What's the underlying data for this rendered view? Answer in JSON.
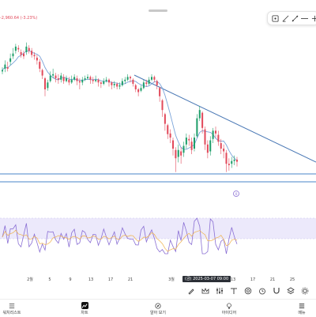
{
  "top_label": "-2,960.64 (-3.23%)",
  "chart_data": {
    "type": "candlestick",
    "y_axis_shown": false,
    "candles": [
      {
        "c": 58,
        "o": 56,
        "h": 62,
        "l": 52
      },
      {
        "c": 66,
        "o": 60,
        "h": 72,
        "l": 55
      },
      {
        "c": 60,
        "o": 62,
        "h": 70,
        "l": 56
      },
      {
        "c": 75,
        "o": 70,
        "h": 82,
        "l": 65
      },
      {
        "c": 82,
        "o": 78,
        "h": 90,
        "l": 74
      },
      {
        "c": 92,
        "o": 86,
        "h": 96,
        "l": 82
      },
      {
        "c": 88,
        "o": 90,
        "h": 94,
        "l": 84
      },
      {
        "c": 80,
        "o": 84,
        "h": 88,
        "l": 76
      },
      {
        "c": 78,
        "o": 82,
        "h": 86,
        "l": 74
      },
      {
        "c": 92,
        "o": 84,
        "h": 98,
        "l": 80
      },
      {
        "c": 86,
        "o": 90,
        "h": 94,
        "l": 82
      },
      {
        "c": 80,
        "o": 86,
        "h": 90,
        "l": 76
      },
      {
        "c": 78,
        "o": 80,
        "h": 84,
        "l": 73
      },
      {
        "c": 72,
        "o": 76,
        "h": 80,
        "l": 66
      },
      {
        "c": 60,
        "o": 70,
        "h": 74,
        "l": 55
      },
      {
        "c": 50,
        "o": 58,
        "h": 60,
        "l": 45
      },
      {
        "c": 30,
        "o": 46,
        "h": 48,
        "l": 20
      },
      {
        "c": 40,
        "o": 32,
        "h": 44,
        "l": 28
      },
      {
        "c": 50,
        "o": 42,
        "h": 56,
        "l": 40
      },
      {
        "c": 52,
        "o": 50,
        "h": 60,
        "l": 46
      },
      {
        "c": 46,
        "o": 50,
        "h": 54,
        "l": 40
      },
      {
        "c": 44,
        "o": 46,
        "h": 52,
        "l": 38
      },
      {
        "c": 50,
        "o": 44,
        "h": 54,
        "l": 40
      },
      {
        "c": 42,
        "o": 48,
        "h": 52,
        "l": 38
      },
      {
        "c": 46,
        "o": 42,
        "h": 50,
        "l": 40
      },
      {
        "c": 40,
        "o": 44,
        "h": 48,
        "l": 36
      },
      {
        "c": 44,
        "o": 40,
        "h": 50,
        "l": 38
      },
      {
        "c": 48,
        "o": 44,
        "h": 52,
        "l": 42
      },
      {
        "c": 42,
        "o": 46,
        "h": 50,
        "l": 36
      },
      {
        "c": 40,
        "o": 42,
        "h": 46,
        "l": 30
      },
      {
        "c": 44,
        "o": 40,
        "h": 48,
        "l": 36
      },
      {
        "c": 46,
        "o": 44,
        "h": 50,
        "l": 42
      },
      {
        "c": 48,
        "o": 46,
        "h": 52,
        "l": 44
      },
      {
        "c": 44,
        "o": 48,
        "h": 50,
        "l": 38
      },
      {
        "c": 42,
        "o": 44,
        "h": 48,
        "l": 38
      },
      {
        "c": 44,
        "o": 42,
        "h": 50,
        "l": 40
      },
      {
        "c": 40,
        "o": 44,
        "h": 46,
        "l": 34
      },
      {
        "c": 38,
        "o": 40,
        "h": 42,
        "l": 32
      },
      {
        "c": 42,
        "o": 38,
        "h": 46,
        "l": 36
      },
      {
        "c": 44,
        "o": 42,
        "h": 48,
        "l": 40
      },
      {
        "c": 40,
        "o": 44,
        "h": 46,
        "l": 34
      },
      {
        "c": 36,
        "o": 40,
        "h": 42,
        "l": 30
      },
      {
        "c": 38,
        "o": 36,
        "h": 42,
        "l": 32
      },
      {
        "c": 34,
        "o": 38,
        "h": 40,
        "l": 30
      },
      {
        "c": 36,
        "o": 34,
        "h": 40,
        "l": 30
      },
      {
        "c": 42,
        "o": 36,
        "h": 46,
        "l": 34
      },
      {
        "c": 44,
        "o": 42,
        "h": 48,
        "l": 38
      },
      {
        "c": 48,
        "o": 44,
        "h": 52,
        "l": 42
      },
      {
        "c": 46,
        "o": 48,
        "h": 50,
        "l": 40
      },
      {
        "c": 38,
        "o": 44,
        "h": 46,
        "l": 34
      },
      {
        "c": 30,
        "o": 36,
        "h": 38,
        "l": 26
      },
      {
        "c": 26,
        "o": 30,
        "h": 32,
        "l": 20
      },
      {
        "c": 32,
        "o": 28,
        "h": 36,
        "l": 26
      },
      {
        "c": 40,
        "o": 32,
        "h": 44,
        "l": 30
      },
      {
        "c": 38,
        "o": 40,
        "h": 44,
        "l": 34
      },
      {
        "c": 44,
        "o": 38,
        "h": 48,
        "l": 36
      },
      {
        "c": 48,
        "o": 44,
        "h": 52,
        "l": 42
      },
      {
        "c": 44,
        "o": 48,
        "h": 50,
        "l": 40
      },
      {
        "c": 36,
        "o": 42,
        "h": 44,
        "l": 30
      },
      {
        "c": 20,
        "o": 32,
        "h": 34,
        "l": 12
      },
      {
        "c": 0,
        "o": 14,
        "h": 16,
        "l": -10
      },
      {
        "c": -20,
        "o": -6,
        "h": -4,
        "l": -30
      },
      {
        "c": -35,
        "o": -22,
        "h": -20,
        "l": -42
      },
      {
        "c": -40,
        "o": -34,
        "h": -28,
        "l": -48
      },
      {
        "c": -56,
        "o": -44,
        "h": -40,
        "l": -66
      },
      {
        "c": -70,
        "o": -58,
        "h": -54,
        "l": -90
      },
      {
        "c": -58,
        "o": -68,
        "h": -50,
        "l": -76
      },
      {
        "c": -66,
        "o": -60,
        "h": -54,
        "l": -78
      },
      {
        "c": -52,
        "o": -62,
        "h": -46,
        "l": -68
      },
      {
        "c": -40,
        "o": -50,
        "h": -34,
        "l": -56
      },
      {
        "c": -44,
        "o": -42,
        "h": -36,
        "l": -52
      },
      {
        "c": -58,
        "o": -46,
        "h": -40,
        "l": -64
      },
      {
        "c": -40,
        "o": -56,
        "h": -34,
        "l": -60
      },
      {
        "c": -12,
        "o": -38,
        "h": -6,
        "l": -40
      },
      {
        "c": 0,
        "o": -12,
        "h": 6,
        "l": -16
      },
      {
        "c": -26,
        "o": -4,
        "h": -2,
        "l": -34
      },
      {
        "c": -50,
        "o": -28,
        "h": -24,
        "l": -58
      },
      {
        "c": -62,
        "o": -50,
        "h": -44,
        "l": -70
      },
      {
        "c": -44,
        "o": -60,
        "h": -38,
        "l": -66
      },
      {
        "c": -30,
        "o": -42,
        "h": -26,
        "l": -48
      },
      {
        "c": -34,
        "o": -30,
        "h": -24,
        "l": -40
      },
      {
        "c": -46,
        "o": -36,
        "h": -30,
        "l": -52
      },
      {
        "c": -56,
        "o": -48,
        "h": -42,
        "l": -64
      },
      {
        "c": -60,
        "o": -56,
        "h": -50,
        "l": -70
      },
      {
        "c": -78,
        "o": -62,
        "h": -58,
        "l": -90
      },
      {
        "c": -80,
        "o": -78,
        "h": -70,
        "l": -88
      },
      {
        "c": -74,
        "o": -78,
        "h": -68,
        "l": -84
      },
      {
        "c": -72,
        "o": -74,
        "h": -66,
        "l": -80
      },
      {
        "c": -75,
        "o": -72,
        "h": -68,
        "l": -82
      }
    ],
    "moving_average_color": "#7aa3d9",
    "up_color": "#1e9e6a",
    "down_color": "#e24a5b",
    "trendline_color": "#4a78b5",
    "support_lines_color": "#4a86c8",
    "rsi_band_color": "#ece9fb",
    "rsi_line_color": "#8a6fd4",
    "rsi_signal_color": "#f0b24a",
    "x_tick_labels": [
      "2월",
      "5",
      "9",
      "13",
      "17",
      "21",
      "3월",
      "13",
      "17",
      "21",
      "25"
    ],
    "cursor_label": "(금) 2025-03-07  09:00",
    "marker_badge": "0"
  },
  "toolbar_icons": [
    "cursor-icon",
    "trendline-icon",
    "ray-icon",
    "horizontal-line-icon",
    "plus-icon"
  ],
  "drawing_tools": [
    "brush-icon",
    "crown-icon",
    "sliders-icon",
    "text-icon",
    "target-icon",
    "alarm-icon",
    "magnet-icon",
    "layers-icon",
    "settings-icon"
  ],
  "tabs": [
    {
      "label": "워치리스트",
      "icon": "list-icon",
      "active": false
    },
    {
      "label": "차트",
      "icon": "chart-icon",
      "active": true
    },
    {
      "label": "알아 보기",
      "icon": "compass-icon",
      "active": false
    },
    {
      "label": "아이디어",
      "icon": "lightbulb-icon",
      "active": false
    },
    {
      "label": "메뉴",
      "icon": "menu-icon",
      "active": false
    }
  ]
}
